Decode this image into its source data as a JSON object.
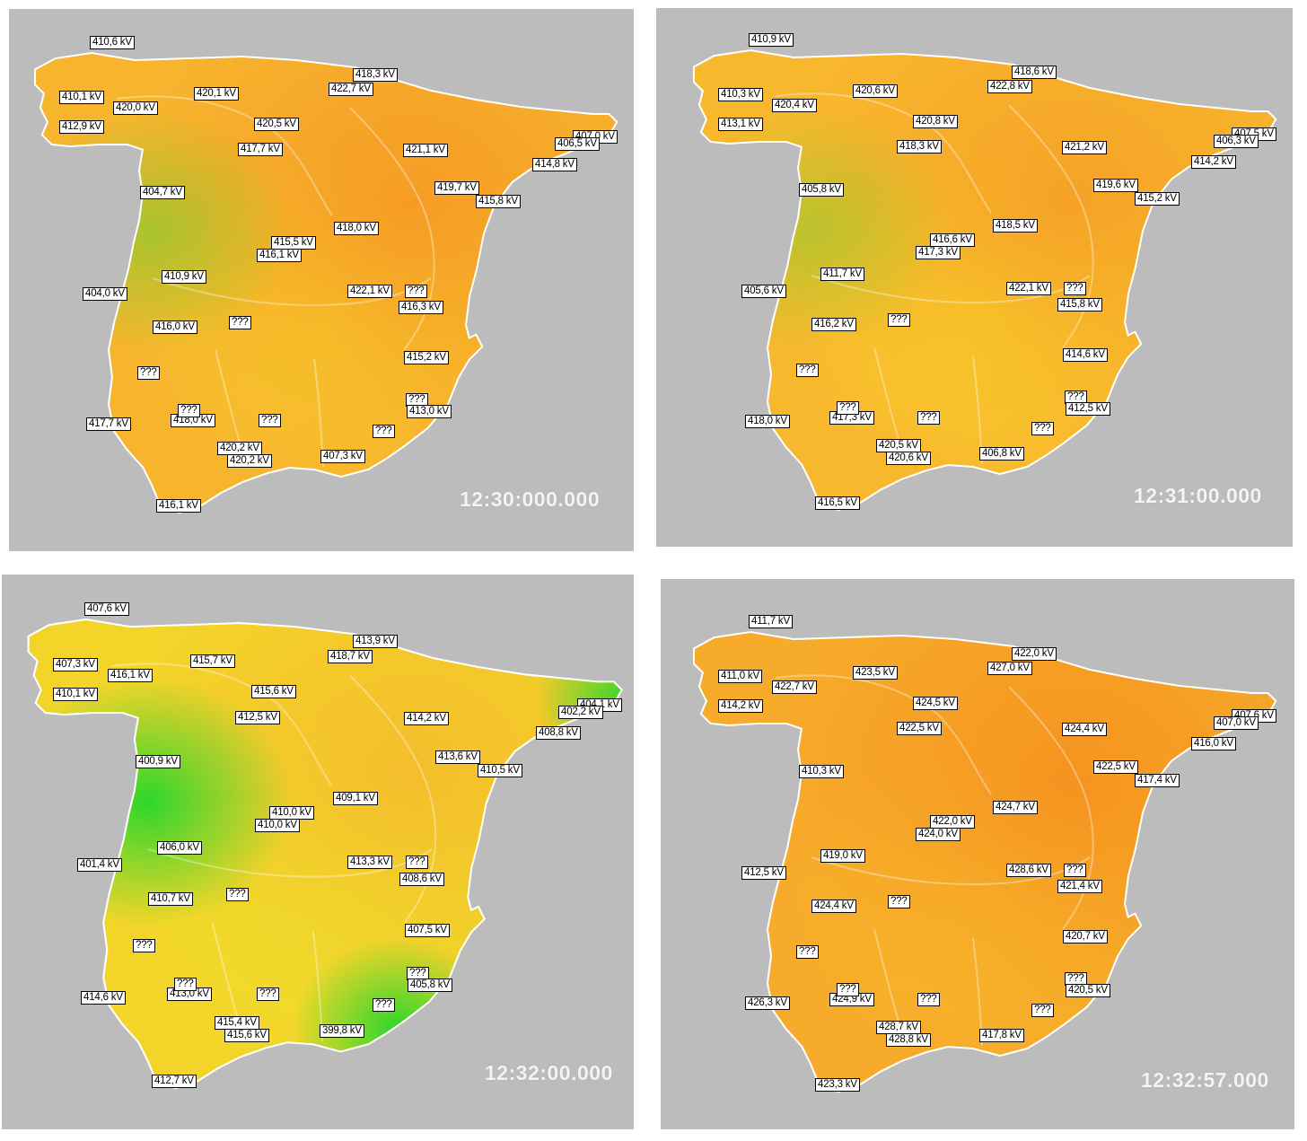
{
  "panels": [
    {
      "id": "p1",
      "timestamp": "12:30:000.000",
      "colors": {
        "base": "#f7b52e",
        "hot": "#f69a24",
        "cool": "#f6d22a",
        "green": "#5fd32c"
      },
      "labels": [
        "410,6 kV",
        "418,3 kV",
        "422,7 kV",
        "410,1 kV",
        "420,1 kV",
        "420,0 kV",
        "412,9 kV",
        "420,5 kV",
        "417,7 kV",
        "421,1 kV",
        "407,0 kV",
        "406,5 kV",
        "414,8 kV",
        "404,7 kV",
        "419,7 kV",
        "415,8 kV",
        "418,0 kV",
        "415,5 kV",
        "416,1 kV",
        "410,9 kV",
        "404,0 kV",
        "422,1 kV",
        "???",
        "416,3 kV",
        "416,0 kV",
        "???",
        "415,2 kV",
        "???",
        "???",
        "413,0 kV",
        "???",
        "418,0 kV",
        "417,7 kV",
        "???",
        "???",
        "420,2 kV",
        "420,2 kV",
        "407,3 kV",
        "416,1 kV"
      ]
    },
    {
      "id": "p2",
      "timestamp": "12:31:00.000",
      "colors": {
        "base": "#f8b82e",
        "hot": "#f6a126",
        "cool": "#f7d82a",
        "green": "#7fd02c"
      },
      "labels": [
        "410,9 kV",
        "418,6 kV",
        "422,8 kV",
        "410,3 kV",
        "420,6 kV",
        "420,4 kV",
        "413,1 kV",
        "420,8 kV",
        "418,3 kV",
        "421,2 kV",
        "407,5 kV",
        "406,3 kV",
        "414,2 kV",
        "405,8 kV",
        "419,6 kV",
        "415,2 kV",
        "418,5 kV",
        "416,6 kV",
        "417,3 kV",
        "411,7 kV",
        "405,6 kV",
        "422,1 kV",
        "???",
        "415,8 kV",
        "416,2 kV",
        "???",
        "414,6 kV",
        "???",
        "???",
        "412,5 kV",
        "???",
        "417,3 kV",
        "418,0 kV",
        "???",
        "???",
        "420,5 kV",
        "420,6 kV",
        "406,8 kV",
        "416,5 kV"
      ]
    },
    {
      "id": "p3",
      "timestamp": "12:32:00.000",
      "colors": {
        "base": "#f3d52a",
        "hot": "#f4bc2c",
        "cool": "#ede42a",
        "green": "#23d62c"
      },
      "labels": [
        "407,6 kV",
        "413,9 kV",
        "418,7 kV",
        "407,3 kV",
        "415,7 kV",
        "416,1 kV",
        "410,1 kV",
        "415,6 kV",
        "412,5 kV",
        "414,2 kV",
        "404,1 kV",
        "402,2 kV",
        "408,8 kV",
        "400,9 kV",
        "413,6 kV",
        "410,5 kV",
        "409,1 kV",
        "410,0 kV",
        "410,0 kV",
        "406,0 kV",
        "401,4 kV",
        "413,3 kV",
        "???",
        "408,6 kV",
        "410,7 kV",
        "???",
        "407,5 kV",
        "???",
        "???",
        "405,8 kV",
        "???",
        "413,0 kV",
        "414,6 kV",
        "???",
        "???",
        "415,4 kV",
        "415,6 kV",
        "399,8 kV",
        "412,7 kV"
      ]
    },
    {
      "id": "p4",
      "timestamp": "12:32:57.000",
      "colors": {
        "base": "#f7ab2a",
        "hot": "#f5921f",
        "cool": "#f8bd2c",
        "green": "#f0a828"
      },
      "labels": [
        "411,7 kV",
        "422,0 kV",
        "427,0 kV",
        "411,0 kV",
        "423,5 kV",
        "422,7 kV",
        "414,2 kV",
        "424,5 kV",
        "422,5 kV",
        "424,4 kV",
        "407,6 kV",
        "407,0 kV",
        "416,0 kV",
        "410,3 kV",
        "422,5 kV",
        "417,4 kV",
        "424,7 kV",
        "422,0 kV",
        "424,0 kV",
        "419,0 kV",
        "412,5 kV",
        "428,6 kV",
        "???",
        "421,4 kV",
        "424,4 kV",
        "???",
        "420,7 kV",
        "???",
        "???",
        "420,5 kV",
        "???",
        "424,9 kV",
        "426,3 kV",
        "???",
        "???",
        "428,7 kV",
        "428,8 kV",
        "417,8 kV",
        "423,3 kV"
      ]
    }
  ]
}
